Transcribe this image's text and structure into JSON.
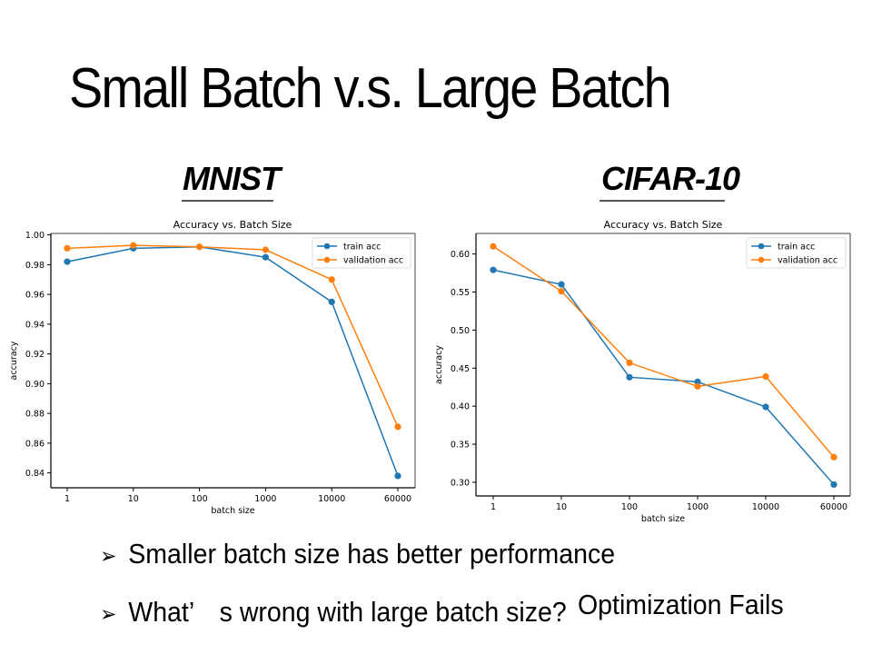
{
  "slide": {
    "title": "Small Batch v.s. Large Batch",
    "datasets": [
      "MNIST",
      "CIFAR-10"
    ],
    "bullets": [
      {
        "icon": "arrow-bullet-icon",
        "glyph": "➢",
        "text": "Smaller batch size has better performance"
      },
      {
        "icon": "arrow-bullet-icon",
        "glyph": "➢",
        "text": "What’　s wrong with large batch size?"
      }
    ],
    "overlay_text": "Optimization Fails"
  },
  "colors": {
    "train": "#1f77b4",
    "validation": "#ff7f0e",
    "axis": "#000000",
    "frame": "#808080"
  },
  "chart_data": [
    {
      "type": "line",
      "dataset": "MNIST",
      "title": "Accuracy vs. Batch Size",
      "xlabel": "batch size",
      "ylabel": "accuracy",
      "categories": [
        "1",
        "10",
        "100",
        "1000",
        "10000",
        "60000"
      ],
      "yticks": [
        "0.84",
        "0.86",
        "0.88",
        "0.90",
        "0.92",
        "0.94",
        "0.96",
        "0.98",
        "1.00"
      ],
      "ylim": [
        0.83,
        1.001
      ],
      "legend": "top-right",
      "grid": false,
      "series": [
        {
          "name": "train acc",
          "values": [
            0.982,
            0.991,
            0.992,
            0.985,
            0.955,
            0.838
          ]
        },
        {
          "name": "validation acc",
          "values": [
            0.991,
            0.993,
            0.992,
            0.99,
            0.97,
            0.871
          ]
        }
      ]
    },
    {
      "type": "line",
      "dataset": "CIFAR-10",
      "title": "Accuracy vs. Batch Size",
      "xlabel": "batch size",
      "ylabel": "accuracy",
      "categories": [
        "1",
        "10",
        "100",
        "1000",
        "10000",
        "60000"
      ],
      "yticks": [
        "0.30",
        "0.35",
        "0.40",
        "0.45",
        "0.50",
        "0.55",
        "0.60"
      ],
      "ylim": [
        0.282,
        0.627
      ],
      "legend": "top-right",
      "grid": false,
      "series": [
        {
          "name": "train acc",
          "values": [
            0.579,
            0.56,
            0.438,
            0.432,
            0.399,
            0.297
          ]
        },
        {
          "name": "validation acc",
          "values": [
            0.61,
            0.551,
            0.457,
            0.426,
            0.439,
            0.333
          ]
        }
      ]
    }
  ]
}
